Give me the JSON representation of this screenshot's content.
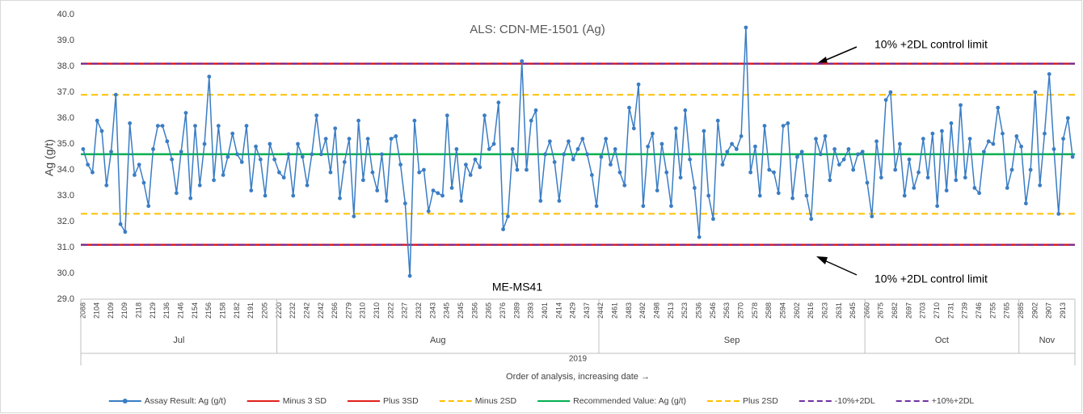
{
  "chart_data": {
    "type": "line",
    "title": "ALS: CDN-ME-1501 (Ag)",
    "y_label": "Ag (g/t)",
    "x_label": "Order of analysis, increasing date →",
    "year": "2019",
    "annotations": [
      "10% +2DL control limit",
      "10% +2DL control limit",
      "ME-MS41"
    ],
    "ylim": [
      29,
      40
    ],
    "yticks": [
      {
        "value": 29,
        "label": "29.0"
      },
      {
        "value": 30,
        "label": "30.0"
      },
      {
        "value": 31,
        "label": "31.0"
      },
      {
        "value": 32,
        "label": "32.0"
      },
      {
        "value": 33,
        "label": "33.0"
      },
      {
        "value": 34,
        "label": "34.0"
      },
      {
        "value": 35,
        "label": "35.0"
      },
      {
        "value": 36,
        "label": "36.0"
      },
      {
        "value": 37,
        "label": "37.0"
      },
      {
        "value": 38,
        "label": "38.0"
      },
      {
        "value": 39,
        "label": "39.0"
      },
      {
        "value": 40,
        "label": "40.0"
      }
    ],
    "grid": false,
    "legend": "bottom",
    "x_groups": [
      {
        "label": "Jul",
        "from": "2088",
        "to": "2205"
      },
      {
        "label": "Aug",
        "from": "2220",
        "to": "2437"
      },
      {
        "label": "Sep",
        "from": "2442",
        "to": "2645"
      },
      {
        "label": "Oct",
        "from": "2660",
        "to": "2765"
      },
      {
        "label": "Nov",
        "from": "2885",
        "to": "2913"
      }
    ],
    "categories": [
      "2088",
      null,
      null,
      "2104",
      null,
      null,
      "2109",
      null,
      null,
      "2109",
      null,
      null,
      "2118",
      null,
      null,
      "2129",
      null,
      null,
      "2136",
      null,
      null,
      "2146",
      null,
      null,
      "2154",
      null,
      null,
      "2156",
      null,
      null,
      "2158",
      null,
      null,
      "2182",
      null,
      null,
      "2191",
      null,
      null,
      "2205",
      null,
      null,
      "2220",
      null,
      null,
      "2232",
      null,
      null,
      "2242",
      null,
      null,
      "2242",
      null,
      null,
      "2266",
      null,
      null,
      "2279",
      null,
      null,
      "2310",
      null,
      null,
      "2310",
      null,
      null,
      "2322",
      null,
      null,
      "2327",
      null,
      null,
      "2332",
      null,
      null,
      "2343",
      null,
      null,
      "2345",
      null,
      null,
      "2345",
      null,
      null,
      "2356",
      null,
      null,
      "2365",
      null,
      null,
      "2376",
      null,
      null,
      "2389",
      null,
      null,
      "2393",
      null,
      null,
      "2401",
      null,
      null,
      "2414",
      null,
      null,
      "2429",
      null,
      null,
      "2437",
      null,
      null,
      "2442",
      null,
      null,
      "2461",
      null,
      null,
      "2483",
      null,
      null,
      "2492",
      null,
      null,
      "2498",
      null,
      null,
      "2513",
      null,
      null,
      "2523",
      null,
      null,
      "2536",
      null,
      null,
      "2546",
      null,
      null,
      "2563",
      null,
      null,
      "2570",
      null,
      null,
      "2578",
      null,
      null,
      "2588",
      null,
      null,
      "2594",
      null,
      null,
      "2602",
      null,
      null,
      "2616",
      null,
      null,
      "2623",
      null,
      null,
      "2631",
      null,
      null,
      "2645",
      null,
      null,
      "2660",
      null,
      null,
      "2675",
      null,
      null,
      "2682",
      null,
      null,
      "2697",
      null,
      null,
      "2703",
      null,
      null,
      "2710",
      null,
      null,
      "2731",
      null,
      null,
      "2739",
      null,
      null,
      "2746",
      null,
      null,
      "2755",
      null,
      null,
      "2765",
      null,
      null,
      "2885",
      null,
      null,
      "2902",
      null,
      null,
      "2907",
      null,
      null,
      "2913",
      null,
      null
    ],
    "series": [
      {
        "name": "Assay Result: Ag (g/t)",
        "color": "#3a7dc4",
        "markers": true,
        "values": [
          34.8,
          34.2,
          33.9,
          35.9,
          35.5,
          33.4,
          34.7,
          36.9,
          31.9,
          31.6,
          35.8,
          33.8,
          34.2,
          33.5,
          32.6,
          34.8,
          35.7,
          35.7,
          35.1,
          34.4,
          33.1,
          34.7,
          36.2,
          32.9,
          35.7,
          33.4,
          35.0,
          37.6,
          33.6,
          35.7,
          33.8,
          34.5,
          35.4,
          34.6,
          34.3,
          35.7,
          33.2,
          34.9,
          34.4,
          33.0,
          35.0,
          34.4,
          33.9,
          33.7,
          34.6,
          33.0,
          35.0,
          34.5,
          33.4,
          34.6,
          36.1,
          34.6,
          35.2,
          33.9,
          35.6,
          32.9,
          34.3,
          35.2,
          32.2,
          35.9,
          33.6,
          35.2,
          33.9,
          33.2,
          34.6,
          32.8,
          35.2,
          35.3,
          34.2,
          32.7,
          29.9,
          35.9,
          33.9,
          34.0,
          32.4,
          33.2,
          33.1,
          33.0,
          36.1,
          33.3,
          34.8,
          32.8,
          34.2,
          33.8,
          34.4,
          34.1,
          36.1,
          34.8,
          35.0,
          36.6,
          31.7,
          32.2,
          34.8,
          34.0,
          38.2,
          34.0,
          35.9,
          36.3,
          32.8,
          34.6,
          35.1,
          34.3,
          32.8,
          34.6,
          35.1,
          34.4,
          34.8,
          35.2,
          34.6,
          33.8,
          32.6,
          34.5,
          35.2,
          34.2,
          34.8,
          33.9,
          33.4,
          36.4,
          35.6,
          37.3,
          32.6,
          34.9,
          35.4,
          33.2,
          35.0,
          33.9,
          32.6,
          35.6,
          33.7,
          36.3,
          34.4,
          33.3,
          31.4,
          35.5,
          33.0,
          32.1,
          35.9,
          34.2,
          34.7,
          35.0,
          34.8,
          35.3,
          39.5,
          33.9,
          34.9,
          33.0,
          35.7,
          34.0,
          33.9,
          33.1,
          35.7,
          35.8,
          32.9,
          34.5,
          34.7,
          33.0,
          32.1,
          35.2,
          34.6,
          35.3,
          33.6,
          34.8,
          34.2,
          34.4,
          34.8,
          34.0,
          34.6,
          34.7,
          33.5,
          32.2,
          35.1,
          33.7,
          36.7,
          37.0,
          34.0,
          35.0,
          33.0,
          34.4,
          33.3,
          33.9,
          35.2,
          33.7,
          35.4,
          32.6,
          35.5,
          33.2,
          35.8,
          33.6,
          36.5,
          33.7,
          35.2,
          33.3,
          33.1,
          34.7,
          35.1,
          35.0,
          36.4,
          35.4,
          33.3,
          34.0,
          35.3,
          34.9,
          32.7,
          34.0,
          37.0,
          33.4,
          35.4,
          37.7,
          34.8,
          32.3,
          35.2,
          36.0,
          34.5
        ]
      },
      {
        "name": "Minus 3 SD",
        "color": "#e0201c",
        "value": 31.1,
        "dash": false
      },
      {
        "name": "Plus 3SD",
        "color": "#e0201c",
        "value": 38.1,
        "dash": false
      },
      {
        "name": "Minus 2SD",
        "color": "#ffc000",
        "value": 32.3,
        "dash": true
      },
      {
        "name": "Recommended Value: Ag (g/t)",
        "color": "#00b050",
        "value": 34.6,
        "dash": false
      },
      {
        "name": "Plus 2SD",
        "color": "#ffc000",
        "value": 36.9,
        "dash": true
      },
      {
        "name": "-10%+2DL",
        "color": "#7030a0",
        "value": 31.1,
        "dash": true
      },
      {
        "name": "+10%+2DL",
        "color": "#7030a0",
        "value": 38.1,
        "dash": true
      }
    ]
  }
}
